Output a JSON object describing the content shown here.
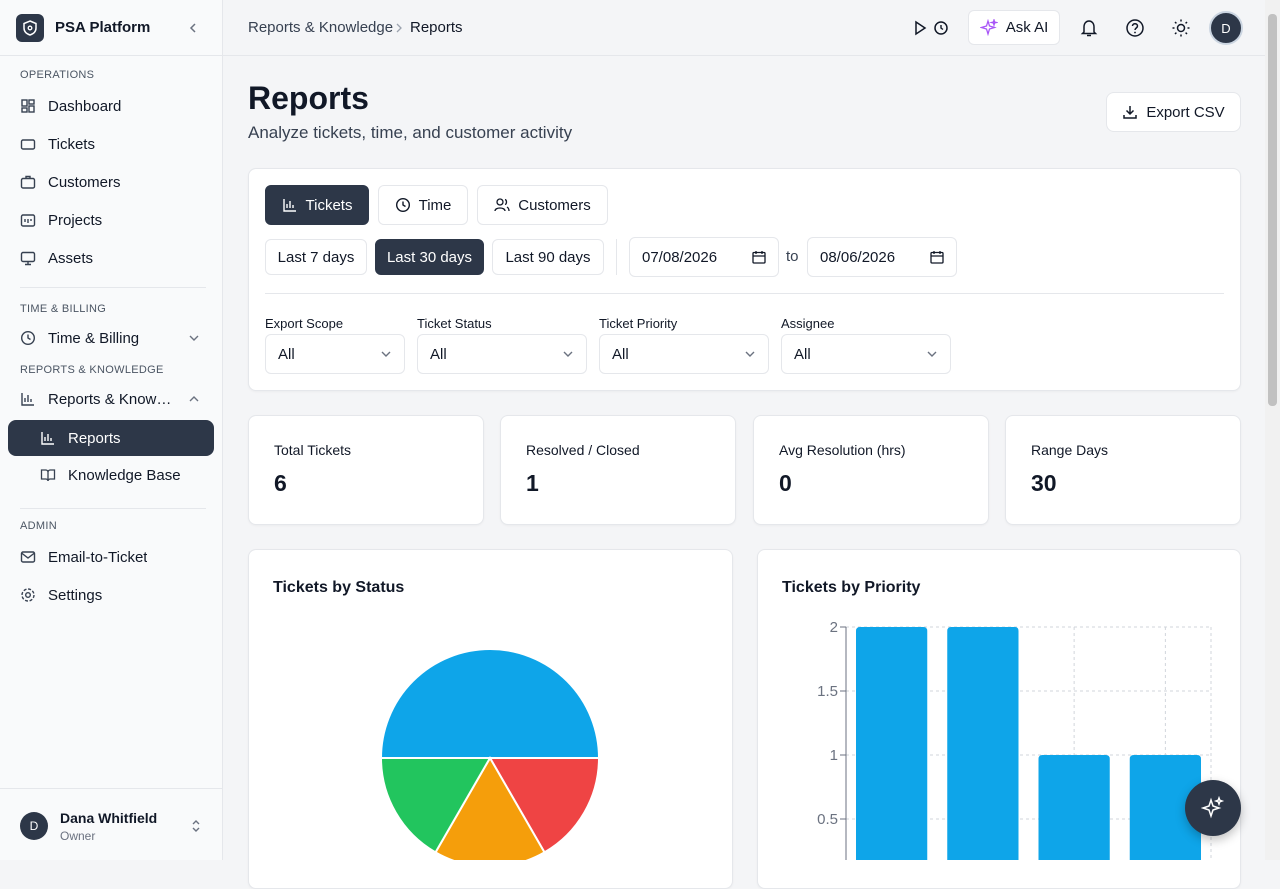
{
  "sidebar": {
    "brand": "PSA Platform",
    "sections": [
      {
        "title": "OPERATIONS",
        "items": [
          "Dashboard",
          "Tickets",
          "Customers",
          "Projects",
          "Assets"
        ]
      },
      {
        "title": "TIME & BILLING",
        "items": [
          "Time & Billing"
        ]
      },
      {
        "title": "REPORTS & KNOWLEDGE",
        "items": [
          "Reports & Knowledge",
          "Reports",
          "Knowledge Base"
        ]
      },
      {
        "title": "ADMIN",
        "items": [
          "Email-to-Ticket",
          "Settings"
        ]
      }
    ],
    "user": {
      "initial": "D",
      "name": "Dana Whitfield",
      "role": "Owner"
    }
  },
  "topbar": {
    "breadcrumb": [
      "Reports & Knowledge",
      "Reports"
    ],
    "ask_ai": "Ask AI",
    "avatar": "D"
  },
  "header": {
    "title": "Reports",
    "subtitle": "Analyze tickets, time, and customer activity",
    "export": "Export CSV"
  },
  "filters": {
    "tabs": [
      "Tickets",
      "Time",
      "Customers"
    ],
    "ranges": [
      "Last 7 days",
      "Last 30 days",
      "Last 90 days"
    ],
    "date_from": "07/08/2026",
    "to": "to",
    "date_to": "08/06/2026",
    "selects": [
      {
        "label": "Export Scope",
        "value": "All"
      },
      {
        "label": "Ticket Status",
        "value": "All"
      },
      {
        "label": "Ticket Priority",
        "value": "All"
      },
      {
        "label": "Assignee",
        "value": "All"
      }
    ]
  },
  "stats": [
    {
      "label": "Total Tickets",
      "value": "6"
    },
    {
      "label": "Resolved / Closed",
      "value": "1"
    },
    {
      "label": "Avg Resolution (hrs)",
      "value": "0"
    },
    {
      "label": "Range Days",
      "value": "30"
    }
  ],
  "chart_data": [
    {
      "type": "pie",
      "title": "Tickets by Status",
      "values": [
        3,
        1,
        1,
        1
      ],
      "colors": [
        "#0ea5e9",
        "#ef4444",
        "#f59e0b",
        "#22c55e"
      ]
    },
    {
      "type": "bar",
      "title": "Tickets by Priority",
      "categories": [
        null,
        null,
        null,
        null
      ],
      "values": [
        2,
        2,
        1,
        1
      ],
      "color": "#0ea5e9",
      "ylim": [
        0,
        2
      ],
      "yticks": [
        0.5,
        1,
        1.5,
        2
      ],
      "grid": true
    }
  ]
}
